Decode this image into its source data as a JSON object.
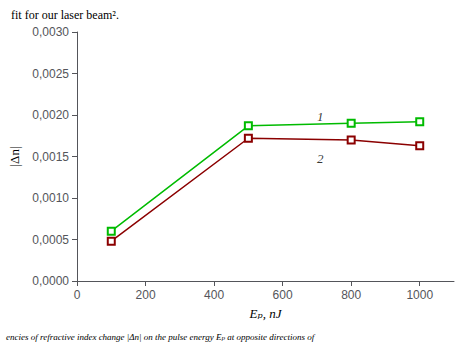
{
  "chart_data": {
    "type": "line",
    "title": "fit for our laser beam².",
    "caption": "encies of refractive index change |Δn| on the pulse energy Eₚ at opposite directions of",
    "xlabel": "Eₚ, nJ",
    "ylabel": "|Δn|",
    "x": [
      100,
      500,
      800,
      1000
    ],
    "series": [
      {
        "color": "#00bb00",
        "marker": "square",
        "values": [
          0.0006,
          0.00187,
          0.0019,
          0.00192
        ]
      },
      {
        "color": "#8b0000",
        "marker": "square",
        "values": [
          0.00048,
          0.00172,
          0.0017,
          0.00163
        ]
      }
    ],
    "annotations": [
      {
        "text": "1",
        "x": 700,
        "y": 0.00198
      },
      {
        "text": "2",
        "x": 700,
        "y": 0.00148
      }
    ],
    "xlim": [
      0,
      1100
    ],
    "ylim": [
      0.0,
      0.003
    ],
    "xticks": [
      0,
      200,
      400,
      600,
      800,
      1000
    ],
    "yticks": [
      {
        "value": 0.0,
        "label": "0,0000"
      },
      {
        "value": 0.0005,
        "label": "0,0005"
      },
      {
        "value": 0.001,
        "label": "0,0010"
      },
      {
        "value": 0.0015,
        "label": "0,0015"
      },
      {
        "value": 0.002,
        "label": "0,0020"
      },
      {
        "value": 0.0025,
        "label": "0,0025"
      },
      {
        "value": 0.003,
        "label": "0,0030"
      }
    ],
    "grid": false
  }
}
